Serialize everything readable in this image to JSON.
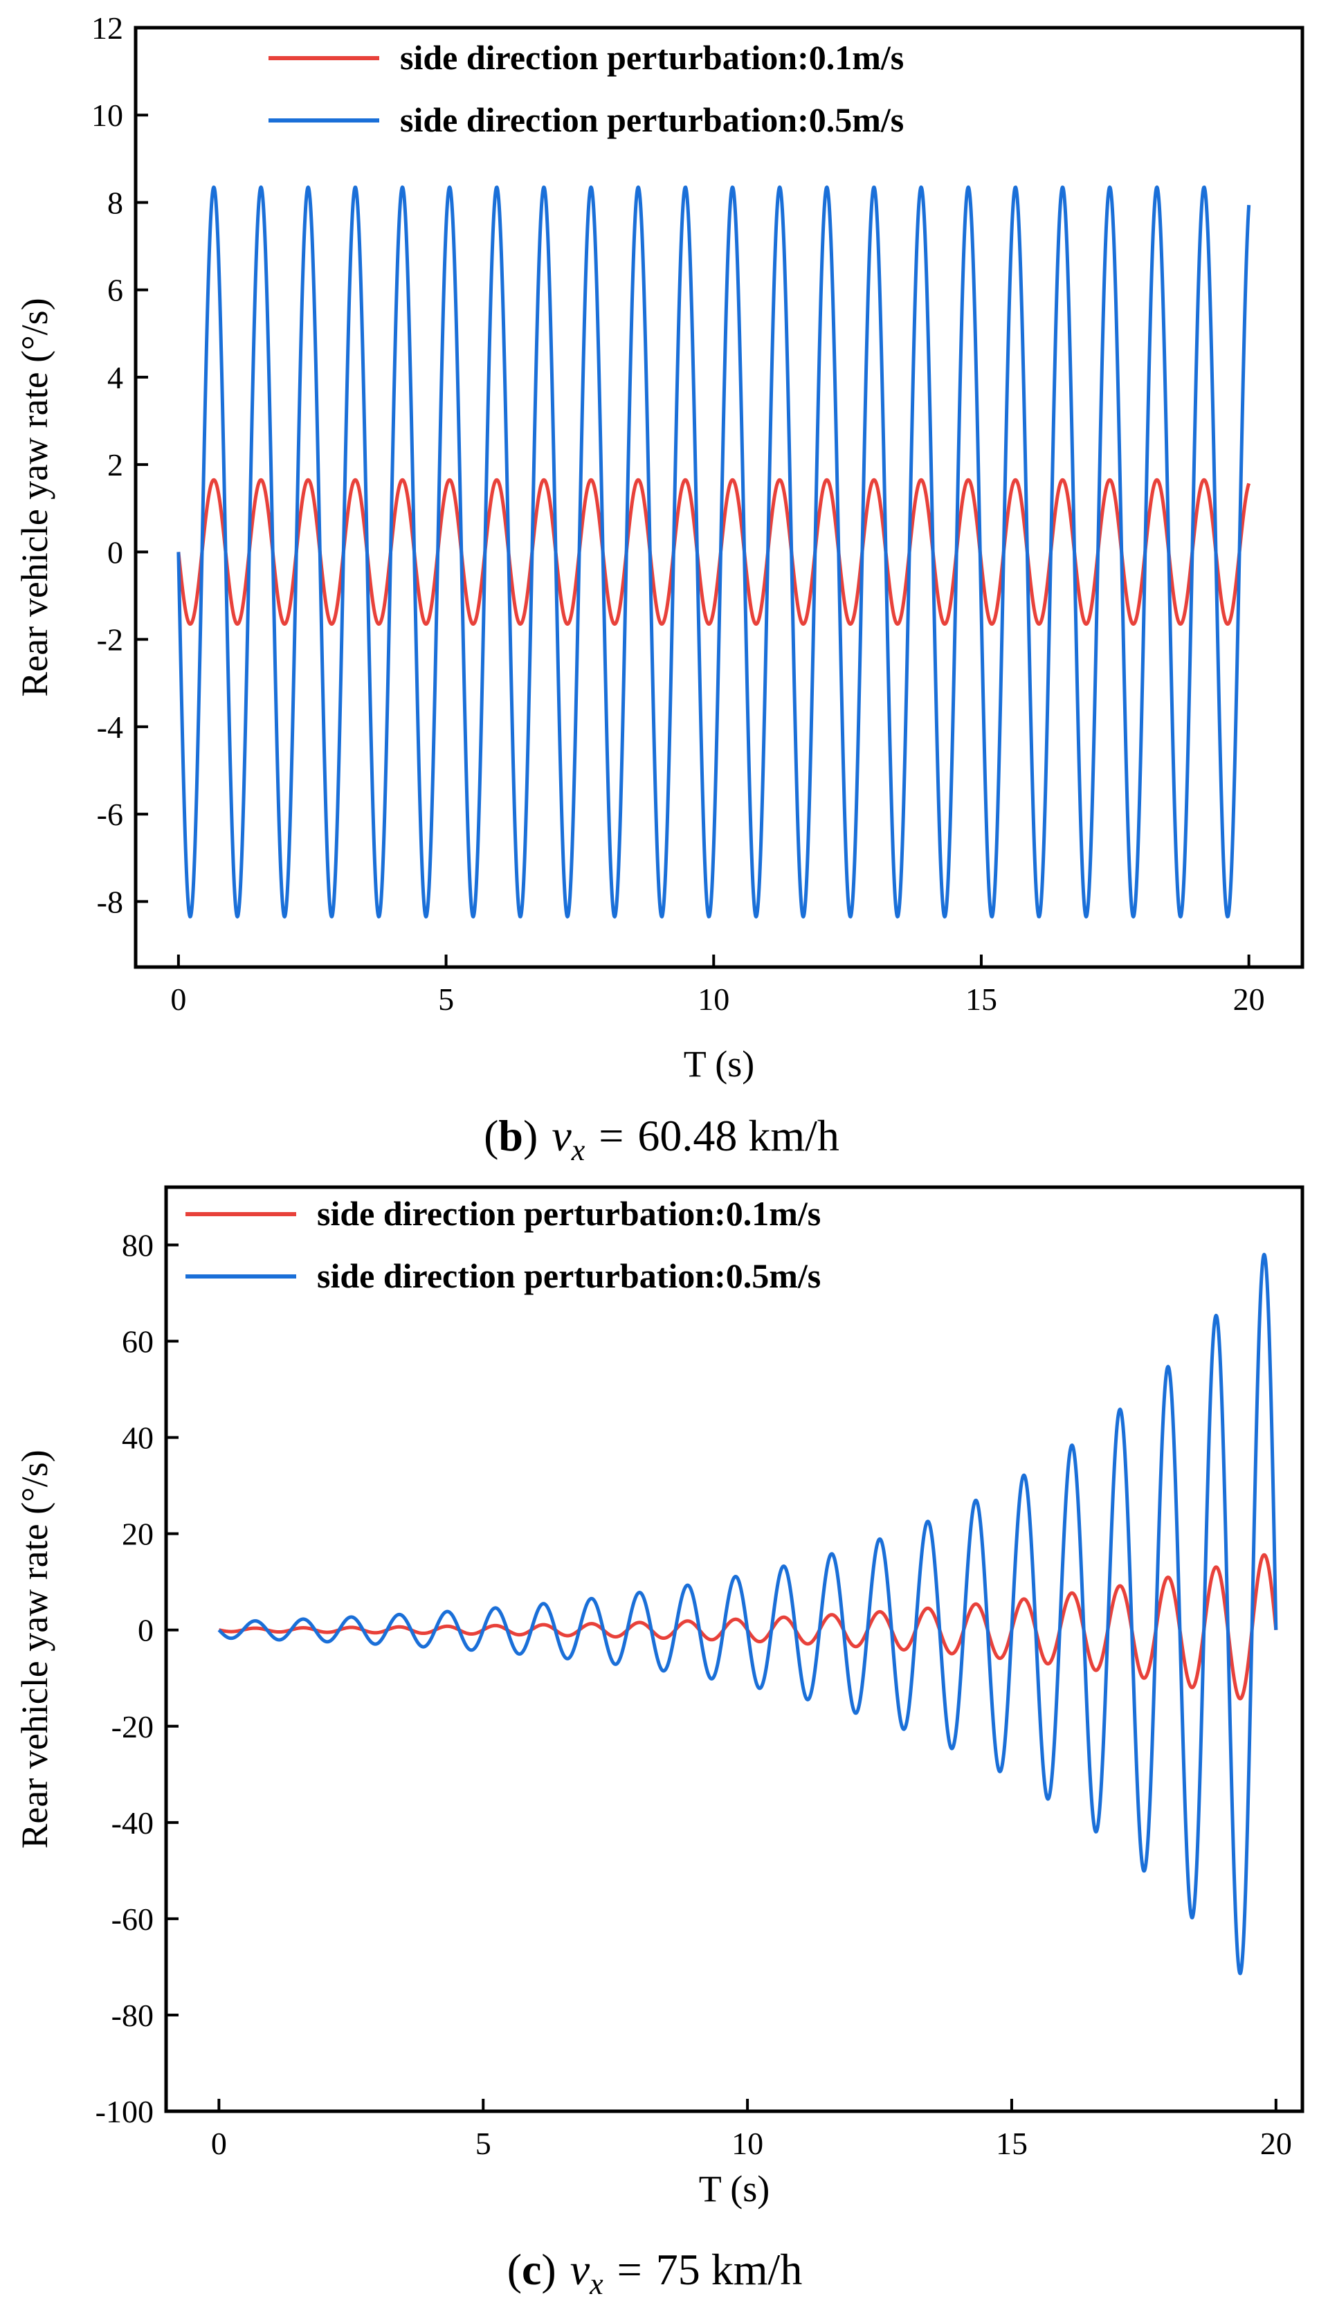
{
  "chart_data": [
    {
      "type": "line",
      "caption": {
        "label": "b",
        "variable": "v",
        "subscript": "x",
        "equals": "=",
        "value": "60.48 km/h"
      },
      "xlabel": "T (s)",
      "ylabel": "Rear vehicle yaw rate (°/s)",
      "xlim": [
        -0.8,
        21.0
      ],
      "ylim": [
        -9.5,
        12
      ],
      "xticks": [
        0,
        5,
        10,
        15,
        20
      ],
      "xtick_labels": [
        "0",
        "5",
        "10",
        "15",
        "20"
      ],
      "yticks": [
        -8,
        -6,
        -4,
        -2,
        0,
        2,
        4,
        6,
        8,
        10,
        12
      ],
      "ytick_labels": [
        "-8",
        "-6",
        "-4",
        "-2",
        "0",
        "2",
        "4",
        "6",
        "8",
        "10",
        "12"
      ],
      "legend_position": "top-center",
      "series": [
        {
          "name": "side direction perturbation:0.1m/s",
          "color": "#e8413a",
          "model": "sine",
          "amplitude": 1.65,
          "frequency": 1.135,
          "phase": 3.14159,
          "growth": 0,
          "x_start": 0,
          "x_end": 20
        },
        {
          "name": "side direction perturbation:0.5m/s",
          "color": "#1a6fd8",
          "model": "sine",
          "amplitude": 8.35,
          "frequency": 1.135,
          "phase": 3.14159,
          "growth": 0,
          "x_start": 0,
          "x_end": 20
        }
      ]
    },
    {
      "type": "line",
      "caption": {
        "label": "c",
        "variable": "v",
        "subscript": "x",
        "equals": "=",
        "value": "75 km/h"
      },
      "xlabel": "T (s)",
      "ylabel": "Rear vehicle yaw rate (°/s)",
      "xlim": [
        -1.0,
        20.5
      ],
      "ylim": [
        -100,
        92
      ],
      "xticks": [
        0,
        5,
        10,
        15,
        20
      ],
      "xtick_labels": [
        "0",
        "5",
        "10",
        "15",
        "20"
      ],
      "yticks": [
        -100,
        -80,
        -60,
        -40,
        -20,
        0,
        20,
        40,
        60,
        80
      ],
      "ytick_labels": [
        "-100",
        "-80",
        "-60",
        "-40",
        "-20",
        "0",
        "20",
        "40",
        "60",
        "80"
      ],
      "legend_position": "top-left",
      "series": [
        {
          "name": "side direction perturbation:0.1m/s",
          "color": "#e8413a",
          "model": "growing-sine",
          "amplitude": 0.33,
          "frequency": 1.1,
          "phase": 3.14159,
          "growth": 0.195,
          "x_start": 0,
          "x_end": 20
        },
        {
          "name": "side direction perturbation:0.5m/s",
          "color": "#1a6fd8",
          "model": "growing-sine",
          "amplitude": 1.65,
          "frequency": 1.1,
          "phase": 3.14159,
          "growth": 0.195,
          "x_start": 0,
          "x_end": 20
        }
      ]
    }
  ]
}
